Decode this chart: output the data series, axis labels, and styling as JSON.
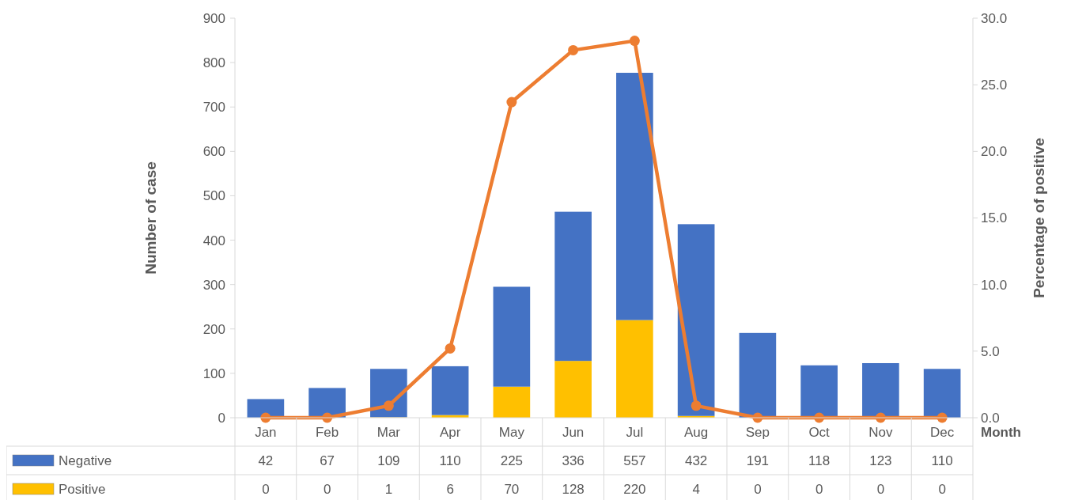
{
  "chart_data": {
    "type": "bar",
    "stacked": true,
    "xlabel": "Month",
    "ylabel": "Number of case",
    "y2label": "Percentage of positive",
    "categories": [
      "Jan",
      "Feb",
      "Mar",
      "Apr",
      "May",
      "Jun",
      "Jul",
      "Aug",
      "Sep",
      "Oct",
      "Nov",
      "Dec"
    ],
    "series": [
      {
        "name": "Positive",
        "color": "#ffc000",
        "values": [
          0,
          0,
          1,
          6,
          70,
          128,
          220,
          4,
          0,
          0,
          0,
          0
        ],
        "value_labels": [
          "0",
          "0",
          "1",
          "6",
          "70",
          "128",
          "220",
          "4",
          "0",
          "0",
          "0",
          "0"
        ]
      },
      {
        "name": "Negative",
        "color": "#4472c4",
        "values": [
          42,
          67,
          109,
          110,
          225,
          336,
          557,
          432,
          191,
          118,
          123,
          110
        ],
        "value_labels": [
          "42",
          "67",
          "109",
          "110",
          "225",
          "336",
          "557",
          "432",
          "191",
          "118",
          "123",
          "110"
        ]
      },
      {
        "type": "line",
        "axis": "y2",
        "color": "#ed7d31",
        "marker": "circle",
        "values": [
          0,
          0,
          0.9,
          5.2,
          23.7,
          27.6,
          28.3,
          0.9,
          0,
          0,
          0,
          0
        ]
      }
    ],
    "ylim": [
      0,
      900
    ],
    "yticks": [
      0,
      100,
      200,
      300,
      400,
      500,
      600,
      700,
      800,
      900
    ],
    "y2lim": [
      0,
      30
    ],
    "y2ticks": [
      {
        "value": 0,
        "label": "0.0"
      },
      {
        "value": 5,
        "label": "5.0"
      },
      {
        "value": 10,
        "label": "10.0"
      },
      {
        "value": 15,
        "label": "15.0"
      },
      {
        "value": 20,
        "label": "20.0"
      },
      {
        "value": 25,
        "label": "25.0"
      },
      {
        "value": 30,
        "label": "30.0"
      }
    ],
    "legend": "bottom",
    "grid": false
  }
}
